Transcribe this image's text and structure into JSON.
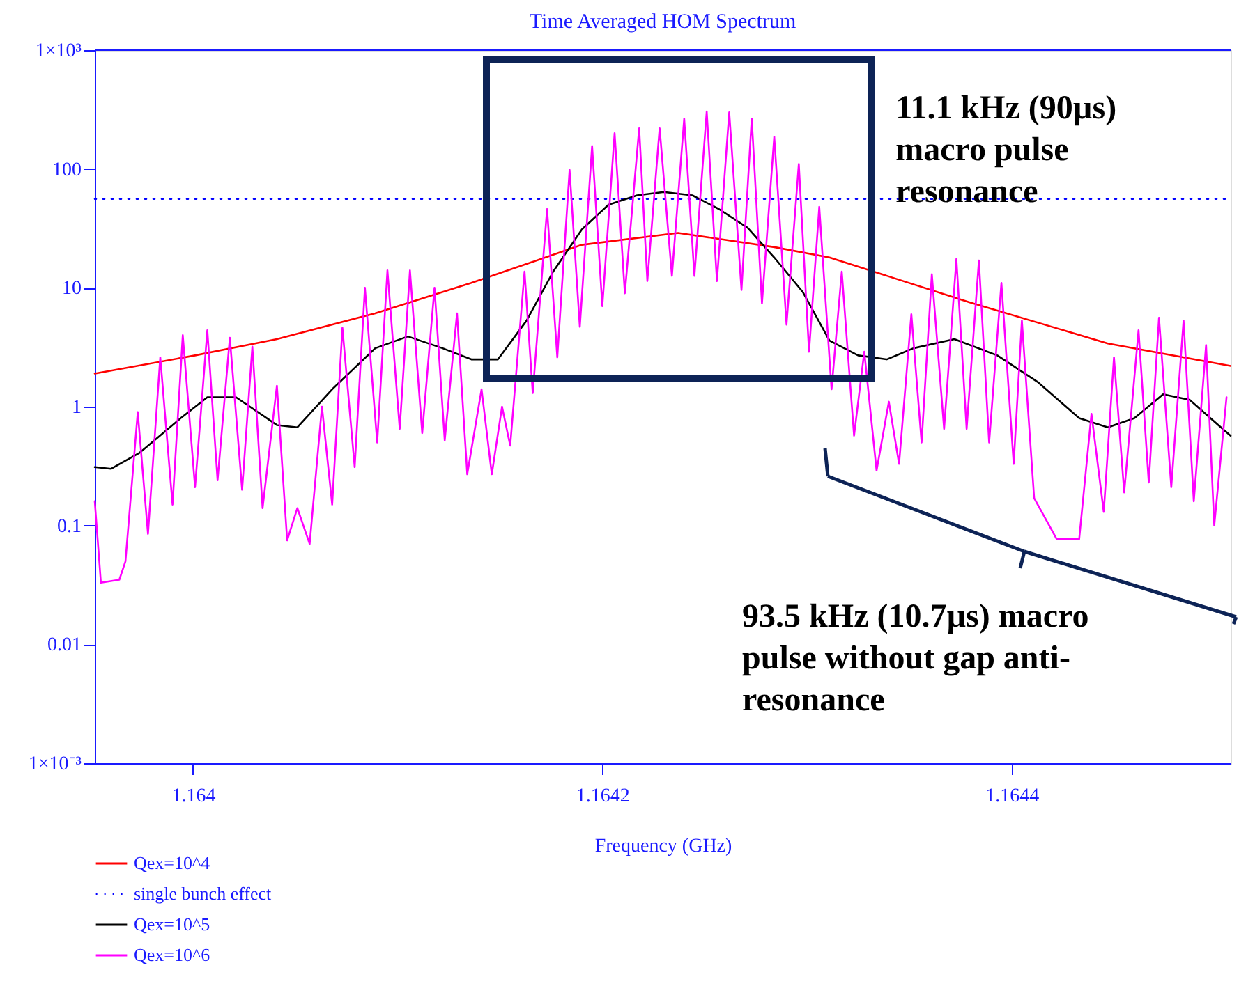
{
  "chart_data": {
    "type": "line",
    "title": "Time Averaged HOM Spectrum",
    "xlabel": "Frequency (GHz)",
    "log": "y",
    "grid": false,
    "legend": "bottom",
    "xlim": [
      1.163952,
      1.164507
    ],
    "xticks": [
      1.164,
      1.1642,
      1.1644
    ],
    "ylim": [
      0.001,
      1000
    ],
    "yticks": [
      {
        "value": 1000,
        "label": "1×10³"
      },
      100,
      10,
      1,
      0.1,
      0.01,
      {
        "value": 0.001,
        "label": "1×10⁻³"
      }
    ],
    "annotations": [
      "11.1 kHz (90µs) macro pulse resonance",
      "93.5 kHz (10.7µs) macro pulse without gap anti-resonance"
    ],
    "series": [
      {
        "name": "Qex=10^4",
        "color": "#ff0000",
        "line_style": "solid",
        "x": [
          1.163952,
          1.164001,
          1.164041,
          1.164089,
          1.164136,
          1.16419,
          1.164237,
          1.164284,
          1.164311,
          1.164379,
          1.164447,
          1.164507
        ],
        "values": [
          1.9,
          2.7,
          3.7,
          6.1,
          11,
          23,
          29,
          22,
          18,
          7.6,
          3.4,
          2.2
        ]
      },
      {
        "name": "single bunch effect",
        "color": "#0000ff",
        "line_style": "dotted",
        "x": [
          1.163952,
          1.164507
        ],
        "values": [
          56,
          56
        ]
      },
      {
        "name": "Qex=10^5",
        "color": "#000000",
        "line_style": "solid",
        "x": [
          1.163952,
          1.16396,
          1.163974,
          1.163994,
          1.164007,
          1.164021,
          1.164041,
          1.164051,
          1.164068,
          1.164089,
          1.164105,
          1.164122,
          1.164136,
          1.164149,
          1.164163,
          1.164176,
          1.16419,
          1.164203,
          1.164217,
          1.16423,
          1.164244,
          1.164257,
          1.164271,
          1.164284,
          1.164298,
          1.164311,
          1.164325,
          1.164339,
          1.164352,
          1.164372,
          1.164393,
          1.164413,
          1.164433,
          1.164447,
          1.16446,
          1.164474,
          1.164487,
          1.164501,
          1.164507
        ],
        "values": [
          0.31,
          0.3,
          0.41,
          0.8,
          1.2,
          1.2,
          0.7,
          0.67,
          1.4,
          3.1,
          3.9,
          3.1,
          2.5,
          2.5,
          5.3,
          13.7,
          31,
          50,
          60,
          64,
          60,
          46,
          32,
          18,
          9.2,
          3.6,
          2.7,
          2.5,
          3.1,
          3.7,
          2.7,
          1.6,
          0.8,
          0.67,
          0.8,
          1.27,
          1.14,
          0.7,
          0.57
        ]
      },
      {
        "name": "Qex=10^6",
        "color": "#ff00ff",
        "line_style": "solid",
        "x": [
          1.163952,
          1.163955,
          1.163964,
          1.163967,
          1.163973,
          1.163978,
          1.163984,
          1.16399,
          1.163995,
          1.164001,
          1.164007,
          1.164012,
          1.164018,
          1.164024,
          1.164029,
          1.164034,
          1.164041,
          1.164046,
          1.164051,
          1.164057,
          1.164063,
          1.164068,
          1.164073,
          1.164079,
          1.164084,
          1.16409,
          1.164095,
          1.164101,
          1.164106,
          1.164112,
          1.164118,
          1.164123,
          1.164129,
          1.164134,
          1.164141,
          1.164146,
          1.164151,
          1.164155,
          1.164162,
          1.164166,
          1.164173,
          1.164178,
          1.164184,
          1.164189,
          1.164195,
          1.1642,
          1.164206,
          1.164211,
          1.164218,
          1.164222,
          1.164228,
          1.164234,
          1.16424,
          1.164245,
          1.164251,
          1.164256,
          1.164262,
          1.164268,
          1.164273,
          1.164278,
          1.164284,
          1.16429,
          1.164296,
          1.164301,
          1.164306,
          1.164312,
          1.164317,
          1.164323,
          1.164328,
          1.164334,
          1.16434,
          1.164345,
          1.164351,
          1.164356,
          1.164361,
          1.164367,
          1.164373,
          1.164378,
          1.164384,
          1.164389,
          1.164395,
          1.164401,
          1.164405,
          1.164411,
          1.164422,
          1.164433,
          1.164439,
          1.164445,
          1.16445,
          1.164455,
          1.164462,
          1.164467,
          1.164472,
          1.164478,
          1.164484,
          1.164489,
          1.164495,
          1.164499,
          1.164505
        ],
        "values": [
          0.16,
          0.033,
          0.035,
          0.05,
          0.9,
          0.085,
          2.6,
          0.15,
          4,
          0.21,
          4.4,
          0.24,
          3.8,
          0.2,
          3.2,
          0.14,
          1.5,
          0.075,
          0.14,
          0.07,
          1.0,
          0.15,
          4.6,
          0.31,
          10,
          0.5,
          14,
          0.65,
          14,
          0.6,
          10,
          0.52,
          6.1,
          0.27,
          1.4,
          0.27,
          1.0,
          0.47,
          13.7,
          1.3,
          46,
          2.6,
          98,
          4.7,
          156,
          7,
          200,
          9,
          220,
          11.4,
          220,
          12.6,
          265,
          12.6,
          305,
          11.4,
          300,
          9.6,
          265,
          7.4,
          187,
          4.9,
          110,
          2.9,
          48,
          1.4,
          13.7,
          0.57,
          2.9,
          0.29,
          1.1,
          0.33,
          6,
          0.5,
          13,
          0.65,
          17.5,
          0.65,
          17,
          0.5,
          11,
          0.33,
          5.3,
          0.17,
          0.077,
          0.077,
          0.87,
          0.13,
          2.6,
          0.19,
          4.4,
          0.23,
          5.6,
          0.21,
          5.3,
          0.16,
          3.3,
          0.1,
          1.2
        ]
      }
    ]
  }
}
